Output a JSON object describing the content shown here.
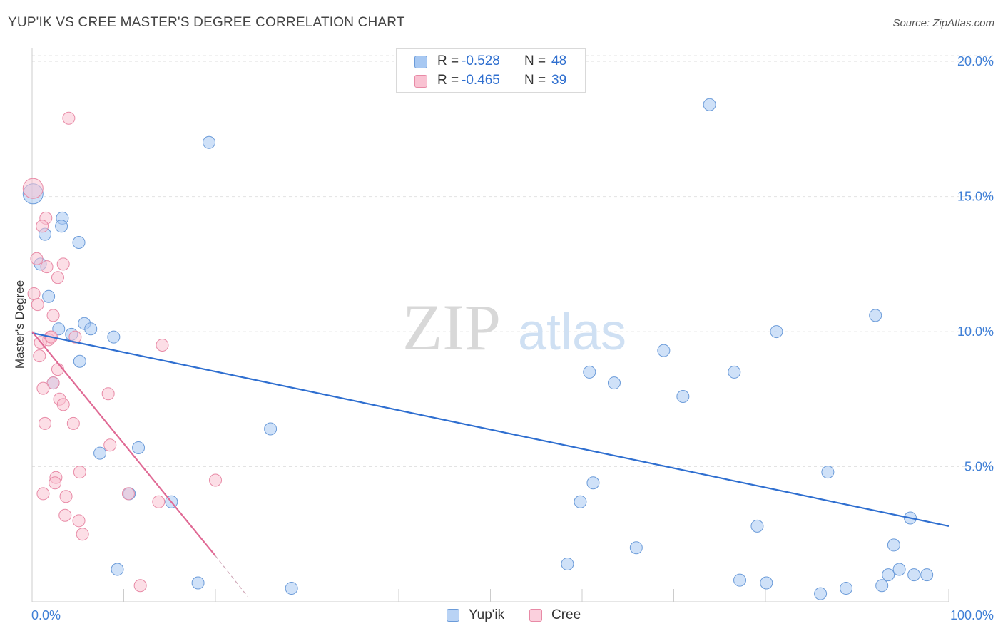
{
  "title": "YUP'IK VS CREE MASTER'S DEGREE CORRELATION CHART",
  "source": "Source: ZipAtlas.com",
  "watermark": {
    "zip": "ZIP",
    "atlas": "atlas"
  },
  "legend_top": {
    "rows": [
      {
        "r_label": "R =",
        "r_value": "-0.528",
        "n_label": "N =",
        "n_value": "48",
        "color": "#a7c8f2",
        "border": "#6b9bd9"
      },
      {
        "r_label": "R =",
        "r_value": "-0.465",
        "n_label": "N =",
        "n_value": "39",
        "color": "#f9c2d2",
        "border": "#e88aa6"
      }
    ]
  },
  "legend_bottom": [
    {
      "label": "Yup'ik",
      "color": "#b9d3f5",
      "border": "#6b9bd9"
    },
    {
      "label": "Cree",
      "color": "#fbd0dd",
      "border": "#e88aa6"
    }
  ],
  "chart_data": {
    "type": "scatter",
    "title": "YUP'IK VS CREE MASTER'S DEGREE CORRELATION CHART",
    "xlabel": "",
    "ylabel": "Master's Degree",
    "xlim": [
      0,
      100
    ],
    "ylim": [
      0,
      20.5
    ],
    "x_tick_labels": [
      {
        "value": 0,
        "label": "0.0%"
      },
      {
        "value": 100,
        "label": "100.0%"
      }
    ],
    "y_ticks": [
      {
        "value": 5,
        "label": "5.0%"
      },
      {
        "value": 10,
        "label": "10.0%"
      },
      {
        "value": 15,
        "label": "15.0%"
      },
      {
        "value": 20,
        "label": "20.0%"
      }
    ],
    "x_minor_ticks": [
      0,
      10,
      20,
      30,
      40,
      50,
      60,
      70,
      80,
      90,
      100
    ],
    "grid": true,
    "series": [
      {
        "name": "Yup'ik",
        "color": "#a7c8f2",
        "stroke": "#6b9bd9",
        "line_color": "#2f6fd0",
        "R": -0.528,
        "N": 48,
        "trend": {
          "x0": 0,
          "y0": 9.95,
          "x1": 100,
          "y1": 2.8
        },
        "points": [
          [
            0.1,
            15.1
          ],
          [
            1.4,
            13.6
          ],
          [
            3.3,
            14.2
          ],
          [
            3.2,
            13.9
          ],
          [
            5.1,
            13.3
          ],
          [
            0.9,
            12.5
          ],
          [
            1.8,
            11.3
          ],
          [
            2.9,
            10.1
          ],
          [
            4.3,
            9.9
          ],
          [
            5.7,
            10.3
          ],
          [
            6.4,
            10.1
          ],
          [
            8.9,
            9.8
          ],
          [
            5.2,
            8.9
          ],
          [
            2.3,
            8.1
          ],
          [
            19.3,
            17.0
          ],
          [
            73.9,
            18.4
          ],
          [
            7.4,
            5.5
          ],
          [
            11.6,
            5.7
          ],
          [
            10.6,
            4.0
          ],
          [
            15.2,
            3.7
          ],
          [
            26.0,
            6.4
          ],
          [
            9.3,
            1.2
          ],
          [
            18.1,
            0.7
          ],
          [
            28.3,
            0.5
          ],
          [
            60.8,
            8.5
          ],
          [
            63.5,
            8.1
          ],
          [
            68.9,
            9.3
          ],
          [
            71.0,
            7.6
          ],
          [
            76.6,
            8.5
          ],
          [
            81.2,
            10.0
          ],
          [
            92.0,
            10.6
          ],
          [
            86.8,
            4.8
          ],
          [
            61.2,
            4.4
          ],
          [
            59.8,
            3.7
          ],
          [
            65.9,
            2.0
          ],
          [
            79.1,
            2.8
          ],
          [
            58.4,
            1.4
          ],
          [
            77.2,
            0.8
          ],
          [
            80.1,
            0.7
          ],
          [
            86.0,
            0.3
          ],
          [
            88.8,
            0.5
          ],
          [
            92.7,
            0.6
          ],
          [
            93.4,
            1.0
          ],
          [
            94.0,
            2.1
          ],
          [
            94.6,
            1.2
          ],
          [
            96.2,
            1.0
          ],
          [
            97.6,
            1.0
          ],
          [
            95.8,
            3.1
          ]
        ]
      },
      {
        "name": "Cree",
        "color": "#f9c2d2",
        "stroke": "#e88aa6",
        "line_color": "#e06a95",
        "R": -0.465,
        "N": 39,
        "trend": {
          "x0": 0,
          "y0": 10.0,
          "x1": 20.0,
          "y1": 1.7
        },
        "trend_dashed": {
          "x0": 20.0,
          "y0": 1.7,
          "x1": 23.5,
          "y1": 0.2
        },
        "points": [
          [
            0.1,
            15.3
          ],
          [
            4.0,
            17.9
          ],
          [
            1.5,
            14.2
          ],
          [
            1.1,
            13.9
          ],
          [
            0.5,
            12.7
          ],
          [
            1.6,
            12.4
          ],
          [
            3.4,
            12.5
          ],
          [
            2.8,
            12.0
          ],
          [
            0.2,
            11.4
          ],
          [
            0.6,
            11.0
          ],
          [
            2.3,
            10.6
          ],
          [
            2.0,
            9.8
          ],
          [
            1.8,
            9.7
          ],
          [
            0.9,
            9.6
          ],
          [
            4.7,
            9.8
          ],
          [
            0.8,
            9.1
          ],
          [
            14.2,
            9.5
          ],
          [
            2.8,
            8.6
          ],
          [
            2.3,
            8.1
          ],
          [
            1.2,
            7.9
          ],
          [
            8.3,
            7.7
          ],
          [
            3.0,
            7.5
          ],
          [
            3.4,
            7.3
          ],
          [
            1.4,
            6.6
          ],
          [
            4.5,
            6.6
          ],
          [
            8.5,
            5.8
          ],
          [
            5.2,
            4.8
          ],
          [
            2.6,
            4.6
          ],
          [
            2.5,
            4.4
          ],
          [
            20.0,
            4.5
          ],
          [
            1.2,
            4.0
          ],
          [
            3.7,
            3.9
          ],
          [
            10.5,
            4.0
          ],
          [
            13.8,
            3.7
          ],
          [
            3.6,
            3.2
          ],
          [
            5.1,
            3.0
          ],
          [
            5.5,
            2.5
          ],
          [
            11.8,
            0.6
          ],
          [
            2.1,
            9.8
          ]
        ]
      }
    ]
  }
}
